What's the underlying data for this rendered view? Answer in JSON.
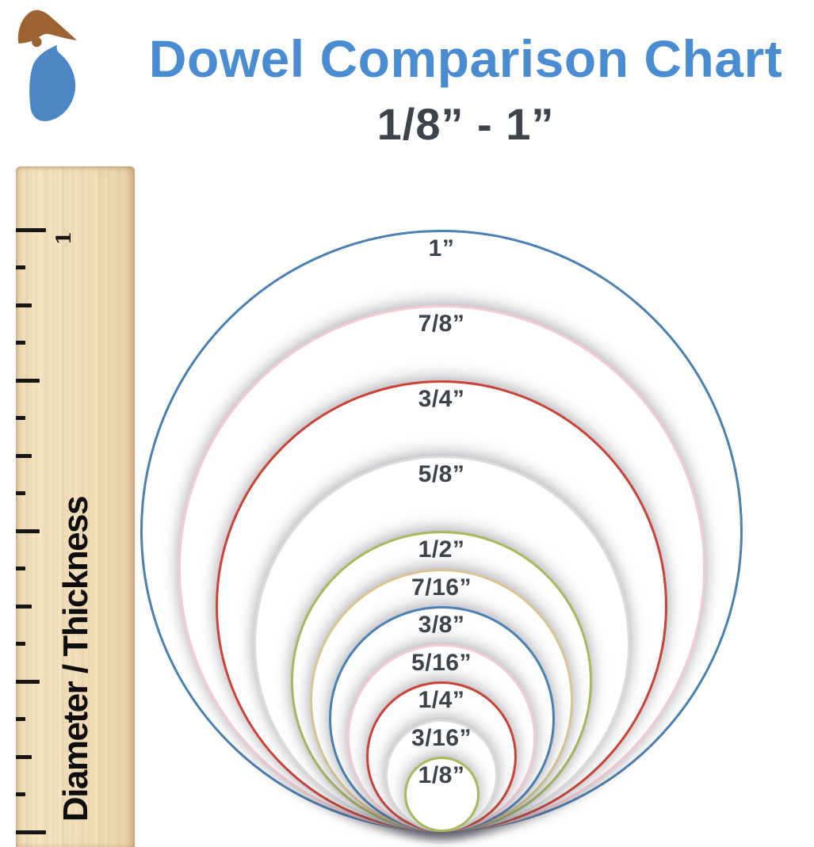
{
  "header": {
    "title": "Dowel Comparison Chart",
    "subtitle": "1/8” - 1”",
    "title_color": "#4a8cd2",
    "subtitle_color": "#3d434b"
  },
  "logo": {
    "name": "woodpecker-bird-logo",
    "brown": "#9c6231",
    "blue": "#4c86c5"
  },
  "ruler": {
    "axis_label": "Diameter / Thickness",
    "inch_label": "1",
    "wood_color": "#f4e2c0",
    "tick_color": "#161616",
    "ticks_bottom_up": [
      "xlong",
      "short",
      "medium",
      "short",
      "long",
      "short",
      "medium",
      "short",
      "long",
      "short",
      "medium",
      "short",
      "long",
      "short",
      "medium",
      "short",
      "xlong"
    ]
  },
  "chart_data": {
    "type": "concentric-circle-size-comparison",
    "title": "Dowel Comparison Chart",
    "subtitle": "1/8” - 1”",
    "axis_label": "Diameter / Thickness",
    "layout": "circles tangent at bottom center, labels inside top edge",
    "label_color": "#3d434b",
    "categories": [
      "1”",
      "7/8”",
      "3/4”",
      "5/8”",
      "1/2”",
      "7/16”",
      "3/8”",
      "5/16”",
      "1/4”",
      "3/16”",
      "1/8”"
    ],
    "values_inches": [
      1,
      0.875,
      0.75,
      0.625,
      0.5,
      0.4375,
      0.375,
      0.3125,
      0.25,
      0.1875,
      0.125
    ],
    "circles": [
      {
        "label": "1”",
        "diameter_in": 1.0,
        "color": "#4a80b2"
      },
      {
        "label": "7/8”",
        "diameter_in": 0.875,
        "color": "#f3ccd2"
      },
      {
        "label": "3/4”",
        "diameter_in": 0.75,
        "color": "#cb4336"
      },
      {
        "label": "5/8”",
        "diameter_in": 0.625,
        "color": "#dcdcdc"
      },
      {
        "label": "1/2”",
        "diameter_in": 0.5,
        "color": "#a9b85b"
      },
      {
        "label": "7/16”",
        "diameter_in": 0.4375,
        "color": "#dcc491"
      },
      {
        "label": "3/8”",
        "diameter_in": 0.375,
        "color": "#4a80b2"
      },
      {
        "label": "5/16”",
        "diameter_in": 0.3125,
        "color": "#f3ccd2"
      },
      {
        "label": "1/4”",
        "diameter_in": 0.25,
        "color": "#cb4336"
      },
      {
        "label": "3/16”",
        "diameter_in": 0.1875,
        "color": "#dcdcdc"
      },
      {
        "label": "1/8”",
        "diameter_in": 0.125,
        "color": "#a9b85b"
      }
    ]
  }
}
